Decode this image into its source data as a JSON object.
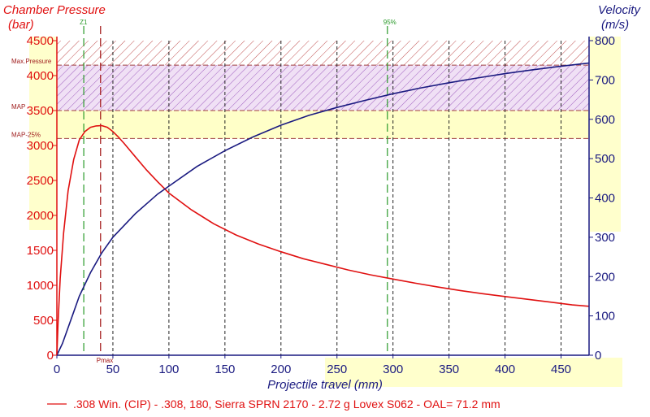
{
  "chart_data": {
    "type": "line",
    "left_axis": {
      "title_line1": "Chamber Pressure",
      "title_line2": "(bar)",
      "ylim": [
        0,
        4500
      ],
      "ticks": [
        "0",
        "500",
        "1000",
        "1500",
        "2000",
        "2500",
        "3000",
        "3500",
        "4000",
        "4500"
      ],
      "color": "#e01010"
    },
    "right_axis": {
      "title_line1": "Velocity",
      "title_line2": "(m/s)",
      "ylim": [
        0,
        800
      ],
      "ticks": [
        "0",
        "100",
        "200",
        "300",
        "400",
        "500",
        "600",
        "700",
        "800"
      ],
      "color": "#1a1a80"
    },
    "x_axis": {
      "title": "Projectile travel (mm)",
      "xlim": [
        0,
        475
      ],
      "ticks": [
        "0",
        "50",
        "100",
        "150",
        "200",
        "250",
        "300",
        "350",
        "400",
        "450"
      ]
    },
    "pressure_bands": [
      {
        "label": "Max.Pressure",
        "value": 4150
      },
      {
        "label": "MAP",
        "value": 3500
      },
      {
        "label": "MAP-25%",
        "value": 3100
      }
    ],
    "markers": [
      {
        "label": "Z1",
        "x": 24,
        "color": "#2a9a2a"
      },
      {
        "label": "Pmax",
        "x": 39,
        "color": "#a01010"
      },
      {
        "label": "95%",
        "x": 295,
        "color": "#2a9a2a"
      }
    ],
    "series": [
      {
        "name": "Chamber Pressure",
        "axis": "left",
        "color": "#e01010",
        "x": [
          0,
          1,
          3,
          6,
          10,
          15,
          20,
          25,
          30,
          35,
          40,
          45,
          50,
          55,
          60,
          70,
          80,
          90,
          100,
          120,
          140,
          160,
          180,
          200,
          220,
          240,
          260,
          280,
          300,
          320,
          340,
          360,
          380,
          400,
          420,
          440,
          460,
          475
        ],
        "values": [
          0,
          450,
          1100,
          1750,
          2350,
          2800,
          3080,
          3200,
          3260,
          3280,
          3285,
          3260,
          3200,
          3120,
          3030,
          2840,
          2650,
          2480,
          2320,
          2080,
          1880,
          1720,
          1590,
          1480,
          1380,
          1300,
          1220,
          1150,
          1090,
          1030,
          975,
          925,
          880,
          840,
          800,
          760,
          720,
          700
        ]
      },
      {
        "name": "Velocity",
        "axis": "right",
        "color": "#1a1a80",
        "x": [
          0,
          5,
          10,
          15,
          20,
          25,
          30,
          40,
          50,
          60,
          70,
          80,
          90,
          100,
          125,
          150,
          175,
          200,
          225,
          250,
          275,
          300,
          325,
          350,
          375,
          400,
          425,
          450,
          475
        ],
        "values": [
          0,
          30,
          70,
          110,
          150,
          180,
          210,
          260,
          300,
          330,
          360,
          385,
          410,
          430,
          480,
          520,
          555,
          585,
          610,
          630,
          648,
          665,
          680,
          693,
          705,
          716,
          726,
          735,
          743
        ]
      }
    ],
    "legend": ".308 Win. (CIP) - .308, 180, Sierra SPRN 2170 - 2.72 g Lovex S062 - OAL= 71.2 mm"
  }
}
